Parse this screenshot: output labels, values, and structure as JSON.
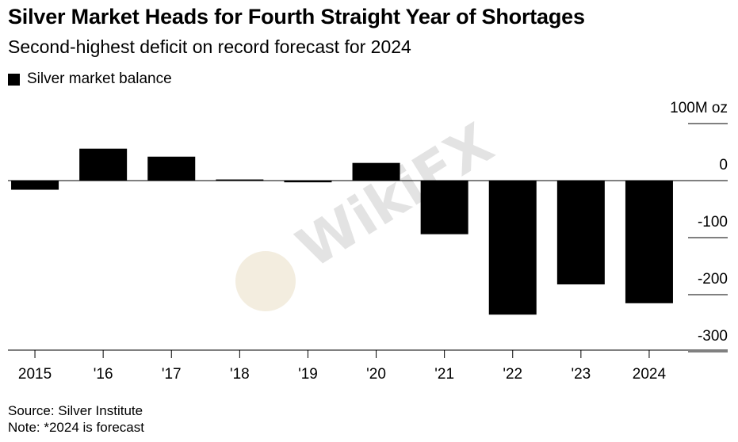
{
  "header": {
    "title": "Silver Market Heads for Fourth Straight Year of Shortages",
    "subtitle": "Second-highest deficit on record forecast for 2024"
  },
  "legend": {
    "label": "Silver market balance",
    "color": "#000000"
  },
  "footer": {
    "source": "Source: Silver Institute",
    "note": "Note: *2024 is forecast"
  },
  "watermark": {
    "text": "WikiFX",
    "color": "#c8c8c8"
  },
  "chart_data": {
    "type": "bar",
    "categories": [
      "2015",
      "'16",
      "'17",
      "'18",
      "'19",
      "'20",
      "'21",
      "'22",
      "'23",
      "2024"
    ],
    "series": [
      {
        "name": "Silver market balance",
        "values": [
          -16,
          56,
          42,
          2,
          -3,
          31,
          -94,
          -235,
          -182,
          -215
        ]
      }
    ],
    "yticks": [
      100,
      0,
      -100,
      -200,
      -300
    ],
    "ytick_labels": [
      "100M oz",
      "0",
      "-100",
      "-200",
      "-300"
    ],
    "ylim": [
      -300,
      100
    ],
    "bar_color": "#000000",
    "legend_position": "top-left",
    "grid": true
  }
}
